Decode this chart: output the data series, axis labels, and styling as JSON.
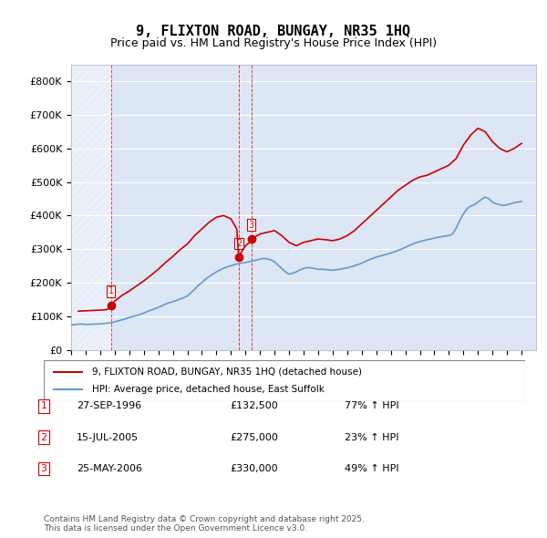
{
  "title": "9, FLIXTON ROAD, BUNGAY, NR35 1HQ",
  "subtitle": "Price paid vs. HM Land Registry's House Price Index (HPI)",
  "ylabel_ticks": [
    "£0",
    "£100K",
    "£200K",
    "£300K",
    "£400K",
    "£500K",
    "£600K",
    "£700K",
    "£800K"
  ],
  "ytick_values": [
    0,
    100000,
    200000,
    300000,
    400000,
    500000,
    600000,
    700000,
    800000
  ],
  "ylim": [
    0,
    850000
  ],
  "xlim_start": 1994.0,
  "xlim_end": 2026.0,
  "hpi_color": "#6699cc",
  "price_color": "#cc0000",
  "bg_color": "#e8eef8",
  "plot_bg": "#dce6f5",
  "grid_color": "#ffffff",
  "legend_entries": [
    "9, FLIXTON ROAD, BUNGAY, NR35 1HQ (detached house)",
    "HPI: Average price, detached house, East Suffolk"
  ],
  "transactions": [
    {
      "label": "1",
      "date": "27-SEP-1996",
      "price": 132500,
      "pct": "77%",
      "x": 1996.74
    },
    {
      "label": "2",
      "date": "15-JUL-2005",
      "price": 275000,
      "pct": "23%",
      "x": 2005.54
    },
    {
      "label": "3",
      "date": "25-MAY-2006",
      "price": 330000,
      "pct": "49%",
      "x": 2006.4
    }
  ],
  "footer": "Contains HM Land Registry data © Crown copyright and database right 2025.\nThis data is licensed under the Open Government Licence v3.0.",
  "hpi_data_x": [
    1994.0,
    1994.25,
    1994.5,
    1994.75,
    1995.0,
    1995.25,
    1995.5,
    1995.75,
    1996.0,
    1996.25,
    1996.5,
    1996.75,
    1997.0,
    1997.25,
    1997.5,
    1997.75,
    1998.0,
    1998.25,
    1998.5,
    1998.75,
    1999.0,
    1999.25,
    1999.5,
    1999.75,
    2000.0,
    2000.25,
    2000.5,
    2000.75,
    2001.0,
    2001.25,
    2001.5,
    2001.75,
    2002.0,
    2002.25,
    2002.5,
    2002.75,
    2003.0,
    2003.25,
    2003.5,
    2003.75,
    2004.0,
    2004.25,
    2004.5,
    2004.75,
    2005.0,
    2005.25,
    2005.5,
    2005.75,
    2006.0,
    2006.25,
    2006.5,
    2006.75,
    2007.0,
    2007.25,
    2007.5,
    2007.75,
    2008.0,
    2008.25,
    2008.5,
    2008.75,
    2009.0,
    2009.25,
    2009.5,
    2009.75,
    2010.0,
    2010.25,
    2010.5,
    2010.75,
    2011.0,
    2011.25,
    2011.5,
    2011.75,
    2012.0,
    2012.25,
    2012.5,
    2012.75,
    2013.0,
    2013.25,
    2013.5,
    2013.75,
    2014.0,
    2014.25,
    2014.5,
    2014.75,
    2015.0,
    2015.25,
    2015.5,
    2015.75,
    2016.0,
    2016.25,
    2016.5,
    2016.75,
    2017.0,
    2017.25,
    2017.5,
    2017.75,
    2018.0,
    2018.25,
    2018.5,
    2018.75,
    2019.0,
    2019.25,
    2019.5,
    2019.75,
    2020.0,
    2020.25,
    2020.5,
    2020.75,
    2021.0,
    2021.25,
    2021.5,
    2021.75,
    2022.0,
    2022.25,
    2022.5,
    2022.75,
    2023.0,
    2023.25,
    2023.5,
    2023.75,
    2024.0,
    2024.25,
    2024.5,
    2024.75,
    2025.0
  ],
  "hpi_data_y": [
    74000,
    75000,
    76000,
    76500,
    75000,
    75500,
    76000,
    76500,
    77000,
    78000,
    79000,
    80000,
    83000,
    86000,
    89000,
    92000,
    96000,
    99000,
    102000,
    105000,
    109000,
    114000,
    118000,
    122000,
    126000,
    131000,
    136000,
    140000,
    143000,
    147000,
    151000,
    155000,
    160000,
    170000,
    180000,
    192000,
    200000,
    210000,
    218000,
    225000,
    232000,
    238000,
    243000,
    247000,
    250000,
    254000,
    256000,
    258000,
    260000,
    262000,
    265000,
    267000,
    270000,
    272000,
    271000,
    268000,
    262000,
    252000,
    242000,
    232000,
    225000,
    228000,
    232000,
    238000,
    242000,
    245000,
    244000,
    242000,
    240000,
    240000,
    239000,
    238000,
    237000,
    238000,
    240000,
    242000,
    244000,
    247000,
    250000,
    254000,
    258000,
    263000,
    268000,
    272000,
    276000,
    279000,
    282000,
    285000,
    288000,
    292000,
    296000,
    300000,
    305000,
    310000,
    315000,
    319000,
    322000,
    325000,
    328000,
    330000,
    333000,
    335000,
    337000,
    339000,
    340000,
    345000,
    362000,
    385000,
    405000,
    420000,
    428000,
    432000,
    440000,
    448000,
    455000,
    450000,
    440000,
    435000,
    432000,
    430000,
    432000,
    435000,
    438000,
    440000,
    442000
  ],
  "price_data_x": [
    1994.5,
    1995.0,
    1995.5,
    1996.0,
    1996.5,
    1996.74,
    1997.0,
    1997.5,
    1998.0,
    1998.5,
    1999.0,
    1999.5,
    2000.0,
    2000.5,
    2001.0,
    2001.5,
    2002.0,
    2002.5,
    2003.0,
    2003.5,
    2004.0,
    2004.5,
    2005.0,
    2005.4,
    2005.54,
    2005.7,
    2006.0,
    2006.3,
    2006.4,
    2006.6,
    2007.0,
    2007.5,
    2008.0,
    2008.5,
    2009.0,
    2009.5,
    2010.0,
    2010.5,
    2011.0,
    2011.5,
    2012.0,
    2012.5,
    2013.0,
    2013.5,
    2014.0,
    2014.5,
    2015.0,
    2015.5,
    2016.0,
    2016.5,
    2017.0,
    2017.5,
    2018.0,
    2018.5,
    2019.0,
    2019.5,
    2020.0,
    2020.5,
    2021.0,
    2021.5,
    2022.0,
    2022.5,
    2023.0,
    2023.5,
    2024.0,
    2024.5,
    2025.0
  ],
  "price_data_y": [
    115000,
    116000,
    117000,
    118000,
    120000,
    132500,
    145000,
    162000,
    175000,
    190000,
    205000,
    222000,
    240000,
    260000,
    278000,
    298000,
    315000,
    340000,
    360000,
    380000,
    395000,
    400000,
    390000,
    360000,
    275000,
    290000,
    310000,
    320000,
    330000,
    335000,
    345000,
    350000,
    355000,
    340000,
    320000,
    310000,
    320000,
    325000,
    330000,
    328000,
    325000,
    330000,
    340000,
    355000,
    375000,
    395000,
    415000,
    435000,
    455000,
    475000,
    490000,
    505000,
    515000,
    520000,
    530000,
    540000,
    550000,
    570000,
    610000,
    640000,
    660000,
    650000,
    620000,
    600000,
    590000,
    600000,
    615000
  ]
}
